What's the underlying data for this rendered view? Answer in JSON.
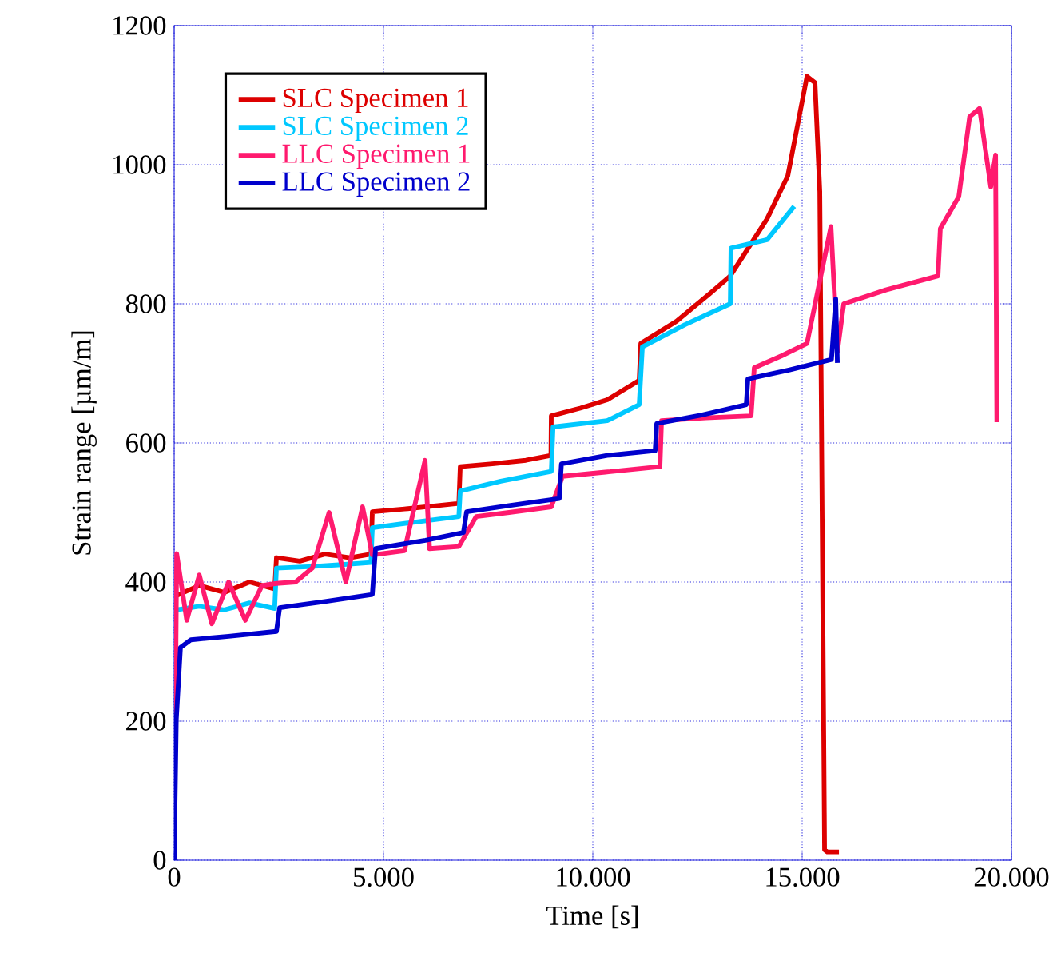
{
  "chart_data": {
    "type": "line",
    "xlabel": "Time [s]",
    "ylabel": "Strain range [µm/m]",
    "xlim": [
      0,
      20000
    ],
    "ylim": [
      0,
      1200
    ],
    "xticks": [
      0,
      {
        "value": 5000,
        "label": "5.000"
      },
      {
        "value": 10000,
        "label": "10.000"
      },
      {
        "value": 15000,
        "label": "15.000"
      },
      {
        "value": 20000,
        "label": "20.000"
      }
    ],
    "yticks": [
      0,
      200,
      400,
      600,
      800,
      1000,
      1200
    ],
    "grid": true,
    "legend": "top left",
    "line_style": "solid",
    "marker": "none",
    "series": [
      {
        "name": "SLC Specimen 1",
        "color": "#dd0000",
        "x": [
          0,
          40,
          600,
          1200,
          1800,
          2400,
          2443,
          3000,
          3600,
          4200,
          4700,
          4733,
          5500,
          6300,
          6800,
          6833,
          7600,
          8400,
          9000,
          9008,
          9700,
          10344,
          11107,
          11146,
          12000,
          12800,
          13283,
          14161,
          14657,
          14900,
          15115,
          15306,
          15421,
          15535,
          15600,
          15879
        ],
        "values": [
          0,
          380,
          395,
          385,
          400,
          390,
          435,
          430,
          440,
          435,
          440,
          501,
          505,
          510,
          513,
          566,
          570,
          575,
          582,
          639,
          650,
          662,
          690,
          743,
          775,
          815,
          840,
          922,
          984,
          1060,
          1127,
          1118,
          961,
          15,
          12,
          12
        ]
      },
      {
        "name": "SLC Specimen 2",
        "color": "#00c8ff",
        "x": [
          0,
          40,
          600,
          1200,
          1800,
          2400,
          2443,
          3200,
          4000,
          4700,
          4733,
          5600,
          6800,
          6833,
          7800,
          9008,
          9050,
          10344,
          11107,
          11184,
          12200,
          13283,
          13300,
          14161,
          14810
        ],
        "values": [
          0,
          360,
          365,
          360,
          370,
          362,
          420,
          422,
          425,
          428,
          478,
          485,
          494,
          531,
          545,
          559,
          623,
          632,
          655,
          738,
          770,
          800,
          880,
          892,
          940
        ]
      },
      {
        "name": "LLC Specimen 1",
        "color": "#ff1a6e",
        "x": [
          0,
          60,
          300,
          600,
          900,
          1300,
          1700,
          2100,
          2443,
          2900,
          3300,
          3700,
          4100,
          4500,
          4733,
          5500,
          5993,
          6100,
          6800,
          7214,
          8000,
          9008,
          9275,
          10300,
          11603,
          11641,
          12700,
          13780,
          13856,
          14500,
          15115,
          15688,
          15841,
          15993,
          17000,
          18245,
          18300,
          18741,
          19000,
          19237,
          19505,
          19620,
          19650
        ],
        "values": [
          0,
          441,
          345,
          410,
          340,
          400,
          345,
          395,
          398,
          400,
          420,
          500,
          400,
          508,
          439,
          445,
          575,
          448,
          451,
          494,
          500,
          508,
          552,
          558,
          566,
          632,
          636,
          639,
          708,
          725,
          743,
          911,
          731,
          800,
          820,
          840,
          908,
          954,
          1069,
          1081,
          968,
          1014,
          630
        ]
      },
      {
        "name": "LLC Specimen 2",
        "color": "#0000cc",
        "x": [
          0,
          50,
          150,
          400,
          1300,
          2443,
          2519,
          3600,
          4733,
          4810,
          6000,
          6909,
          6985,
          8000,
          9199,
          9250,
          10344,
          11489,
          11527,
          12600,
          13665,
          13703,
          14700,
          15700,
          15802,
          15841
        ],
        "values": [
          0,
          202,
          306,
          317,
          322,
          329,
          363,
          372,
          382,
          448,
          460,
          471,
          501,
          510,
          520,
          570,
          582,
          589,
          628,
          640,
          655,
          692,
          705,
          720,
          807,
          715
        ]
      }
    ]
  }
}
